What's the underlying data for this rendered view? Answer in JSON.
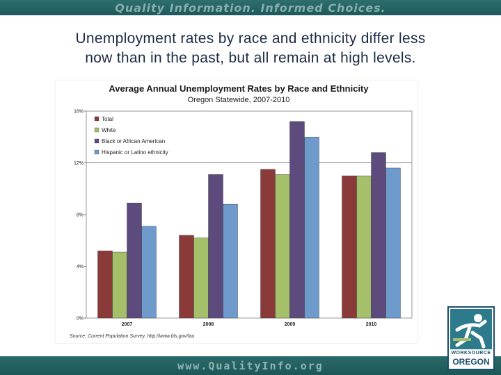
{
  "banner": {
    "top_text": "Quality Information. Informed Choices.",
    "bottom_text": "www.QualityInfo.org"
  },
  "headline": {
    "line1": "Unemployment rates by race and ethnicity differ less",
    "line2": "now than in the past, but all remain at high levels."
  },
  "logo": {
    "line1": "WORKSOURCE",
    "line2": "OREGON"
  },
  "colors": {
    "total": "#8b3a3a",
    "white": "#a4c06a",
    "black": "#5e4b7e",
    "hispanic": "#6e9bcb",
    "banner": "#1e5959"
  },
  "chart_data": {
    "type": "bar",
    "title": "Average Annual Unemployment Rates by Race and Ethnicity",
    "subtitle": "Oregon Statewide, 2007-2010",
    "categories": [
      "2007",
      "2008",
      "2009",
      "2010"
    ],
    "series": [
      {
        "name": "Total",
        "values": [
          5.2,
          6.4,
          11.5,
          11.0
        ]
      },
      {
        "name": "White",
        "values": [
          5.1,
          6.2,
          11.1,
          11.0
        ]
      },
      {
        "name": "Black or African American",
        "values": [
          8.9,
          11.1,
          15.2,
          12.8
        ]
      },
      {
        "name": "Hispanic or Latino ethnicity",
        "values": [
          7.1,
          8.8,
          14.0,
          11.6
        ]
      }
    ],
    "ylim": [
      0,
      16
    ],
    "yticks": [
      0,
      4,
      8,
      12,
      16
    ],
    "ytick_labels": [
      "0%",
      "4%",
      "8%",
      "12%",
      "16%"
    ],
    "grid": "horizontal at 12%",
    "legend_position": "top-left",
    "source": "Source: Current Population Survey, http://www.bls.gov/lau"
  }
}
